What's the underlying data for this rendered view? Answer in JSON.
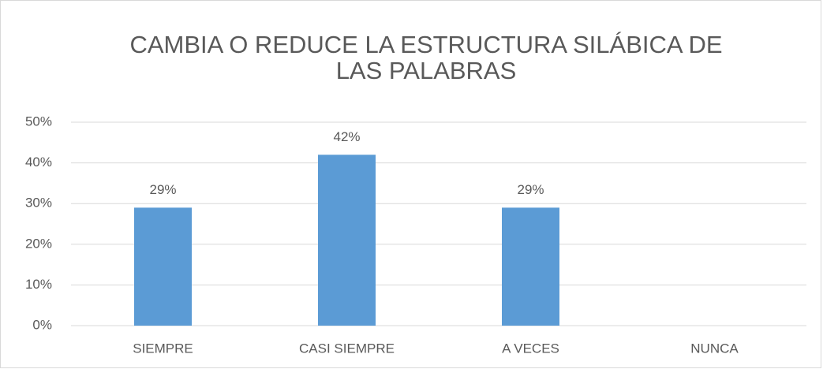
{
  "chart_data": {
    "type": "bar",
    "title": "CAMBIA O REDUCE LA ESTRUCTURA SILÁBICA DE LAS PALABRAS",
    "categories": [
      "SIEMPRE",
      "CASI SIEMPRE",
      "A VECES",
      "NUNCA"
    ],
    "values": [
      29,
      42,
      29,
      0
    ],
    "value_labels": [
      "29%",
      "42%",
      "29%",
      null
    ],
    "color": "#5b9bd5",
    "ylim": [
      0,
      50
    ],
    "yticks": [
      {
        "value": 0,
        "label": "0%"
      },
      {
        "value": 10,
        "label": "10%"
      },
      {
        "value": 20,
        "label": "20%"
      },
      {
        "value": 30,
        "label": "30%"
      },
      {
        "value": 40,
        "label": "40%"
      },
      {
        "value": 50,
        "label": "50%"
      }
    ],
    "grid": true
  }
}
